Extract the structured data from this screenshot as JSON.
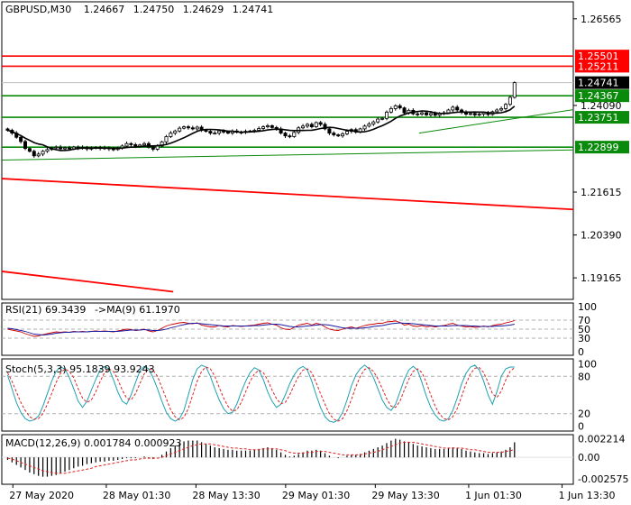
{
  "chart_data": {
    "type": "candlestick",
    "main": {
      "header": {
        "symbol": "GBPUSD,M30",
        "open": "1.24667",
        "high": "1.24750",
        "low": "1.24629",
        "close": "1.24741"
      },
      "y_ticks": [
        "1.26565",
        "1.24090",
        "1.21615",
        "1.20390",
        "1.19165"
      ],
      "y_tick_values": [
        1.26565,
        1.2409,
        1.21615,
        1.2039,
        1.19165
      ],
      "ylim": [
        1.1855,
        1.2705
      ],
      "red_levels": [
        {
          "value": 1.25501,
          "label": "1.25501"
        },
        {
          "value": 1.25211,
          "label": "1.25211"
        }
      ],
      "green_levels": [
        {
          "value": 1.24367,
          "label": "1.24367"
        },
        {
          "value": 1.23751,
          "label": "1.23751"
        },
        {
          "value": 1.22899,
          "label": "1.22899"
        }
      ],
      "current_price": {
        "value": 1.24741,
        "label": "1.24741"
      },
      "trendlines": [
        {
          "color": "#ff0000",
          "from": [
            0,
            1.22
          ],
          "to": [
            1.0,
            1.2112
          ]
        },
        {
          "color": "#ff0000",
          "from": [
            0,
            1.1935
          ],
          "to": [
            0.3,
            1.1877
          ]
        },
        {
          "color": "#0a8a0a",
          "from": [
            0,
            1.2253
          ],
          "to": [
            1.0,
            1.2282
          ]
        },
        {
          "color": "#0a8a0a",
          "from": [
            0.73,
            1.233
          ],
          "to": [
            1.0,
            1.2397
          ]
        }
      ],
      "close": [
        1.2338,
        1.233,
        1.2318,
        1.2306,
        1.2286,
        1.2278,
        1.2265,
        1.227,
        1.2278,
        1.2283,
        1.2288,
        1.229,
        1.2285,
        1.2288,
        1.2285,
        1.229,
        1.2287,
        1.2289,
        1.2285,
        1.2287,
        1.2289,
        1.2286,
        1.2288,
        1.2285,
        1.2283,
        1.2288,
        1.2293,
        1.23,
        1.2297,
        1.2292,
        1.2296,
        1.23,
        1.229,
        1.2284,
        1.2293,
        1.2305,
        1.232,
        1.233,
        1.2336,
        1.2344,
        1.2348,
        1.2345,
        1.2342,
        1.2347,
        1.2338,
        1.2335,
        1.233,
        1.233,
        1.2336,
        1.2333,
        1.233,
        1.2336,
        1.2333,
        1.2332,
        1.2335,
        1.2336,
        1.2338,
        1.2343,
        1.2348,
        1.2351,
        1.2346,
        1.2342,
        1.233,
        1.2322,
        1.232,
        1.2332,
        1.2345,
        1.235,
        1.2355,
        1.2348,
        1.236,
        1.2355,
        1.2342,
        1.233,
        1.2325,
        1.2322,
        1.2328,
        1.2335,
        1.234,
        1.2333,
        1.2342,
        1.235,
        1.2356,
        1.2362,
        1.237,
        1.2372,
        1.239,
        1.24,
        1.2408,
        1.2402,
        1.2388,
        1.2395,
        1.2385,
        1.2384,
        1.2388,
        1.2382,
        1.2386,
        1.2381,
        1.2386,
        1.2388,
        1.2396,
        1.2404,
        1.2396,
        1.239,
        1.2384,
        1.2386,
        1.2382,
        1.2384,
        1.2388,
        1.2383,
        1.2391,
        1.2396,
        1.24,
        1.2412,
        1.2432,
        1.2474
      ],
      "ma_note": "moving average line"
    },
    "rsi": {
      "label": "RSI(21) 69.3439",
      "ma_label": "->MA(9) 61.1970",
      "y_ticks": [
        "100",
        "70",
        "50",
        "30",
        "0"
      ],
      "y_tick_values": [
        100,
        70,
        50,
        30,
        0
      ],
      "levels": [
        70,
        50,
        30
      ],
      "values": [
        50,
        48,
        46,
        44,
        40,
        37,
        34,
        35,
        38,
        40,
        42,
        44,
        43,
        44,
        43,
        45,
        44,
        45,
        44,
        45,
        46,
        45,
        46,
        45,
        44,
        46,
        48,
        50,
        49,
        47,
        48,
        50,
        46,
        44,
        47,
        52,
        57,
        60,
        62,
        64,
        65,
        63,
        62,
        64,
        59,
        57,
        55,
        55,
        58,
        56,
        55,
        58,
        57,
        56,
        57,
        58,
        59,
        61,
        63,
        64,
        61,
        59,
        53,
        50,
        49,
        54,
        59,
        61,
        63,
        59,
        63,
        61,
        55,
        50,
        48,
        47,
        50,
        53,
        55,
        52,
        55,
        58,
        60,
        61,
        63,
        63,
        66,
        67,
        68,
        65,
        59,
        61,
        57,
        56,
        58,
        55,
        57,
        55,
        57,
        58,
        61,
        63,
        59,
        57,
        55,
        56,
        54,
        55,
        57,
        55,
        58,
        60,
        61,
        64,
        66,
        69
      ],
      "ma_values": [
        52,
        51,
        49,
        47,
        45,
        42,
        39,
        38,
        37,
        38,
        39,
        41,
        42,
        43,
        43,
        44,
        44,
        44,
        44,
        45,
        45,
        45,
        45,
        45,
        45,
        45,
        46,
        47,
        48,
        48,
        48,
        49,
        48,
        47,
        47,
        48,
        50,
        53,
        55,
        58,
        60,
        62,
        63,
        63,
        62,
        61,
        60,
        59,
        58,
        57,
        57,
        57,
        57,
        57,
        57,
        57,
        58,
        58,
        59,
        60,
        61,
        61,
        60,
        58,
        56,
        55,
        55,
        56,
        57,
        58,
        59,
        60,
        60,
        59,
        57,
        55,
        53,
        52,
        52,
        52,
        52,
        53,
        54,
        56,
        57,
        58,
        60,
        62,
        63,
        64,
        63,
        63,
        62,
        61,
        60,
        59,
        58,
        57,
        57,
        57,
        57,
        58,
        58,
        58,
        58,
        57,
        57,
        56,
        56,
        56,
        56,
        57,
        57,
        58,
        59,
        61
      ]
    },
    "stoch": {
      "label": "Stoch(5,3,3) 95.1839 93.9243",
      "y_ticks": [
        "100",
        "80",
        "20",
        "0"
      ],
      "y_tick_values": [
        100,
        80,
        20,
        0
      ],
      "levels": [
        80,
        20
      ],
      "main_values": [
        82,
        60,
        38,
        22,
        12,
        8,
        10,
        16,
        32,
        52,
        72,
        88,
        95,
        92,
        78,
        60,
        40,
        30,
        40,
        58,
        75,
        90,
        96,
        92,
        75,
        55,
        40,
        35,
        50,
        70,
        88,
        96,
        92,
        78,
        60,
        40,
        22,
        12,
        8,
        12,
        25,
        50,
        75,
        92,
        98,
        95,
        80,
        60,
        42,
        28,
        20,
        22,
        35,
        55,
        72,
        86,
        94,
        90,
        75,
        55,
        40,
        30,
        35,
        50,
        68,
        82,
        92,
        96,
        90,
        72,
        50,
        30,
        15,
        8,
        6,
        10,
        22,
        42,
        65,
        82,
        92,
        98,
        92,
        78,
        60,
        42,
        30,
        25,
        35,
        55,
        75,
        90,
        96,
        90,
        70,
        48,
        30,
        18,
        10,
        8,
        12,
        25,
        45,
        68,
        85,
        95,
        98,
        90,
        72,
        50,
        35,
        55,
        80,
        92,
        95,
        95
      ],
      "signal_values": [
        86,
        72,
        55,
        38,
        25,
        15,
        11,
        12,
        20,
        35,
        52,
        70,
        85,
        92,
        88,
        78,
        60,
        45,
        38,
        42,
        55,
        72,
        86,
        92,
        88,
        75,
        58,
        45,
        42,
        52,
        68,
        84,
        92,
        90,
        80,
        62,
        44,
        26,
        15,
        10,
        14,
        28,
        50,
        72,
        88,
        95,
        92,
        80,
        62,
        45,
        32,
        24,
        26,
        38,
        55,
        72,
        84,
        90,
        86,
        74,
        58,
        44,
        36,
        38,
        50,
        66,
        80,
        90,
        92,
        86,
        70,
        52,
        35,
        20,
        11,
        8,
        12,
        25,
        43,
        63,
        80,
        91,
        94,
        88,
        76,
        60,
        44,
        32,
        30,
        40,
        58,
        75,
        88,
        92,
        86,
        70,
        50,
        32,
        19,
        12,
        10,
        15,
        28,
        48,
        68,
        84,
        93,
        94,
        86,
        70,
        52,
        46,
        56,
        74,
        88,
        94
      ]
    },
    "macd": {
      "label": "MACD(12,26,9) 0.001784 0.000923",
      "y_ticks": [
        "0.002214",
        "0.00",
        "-0.002575"
      ],
      "y_tick_values": [
        0.002214,
        0.0,
        -0.002575
      ],
      "ylim": [
        -0.0032,
        0.0027
      ],
      "histogram": [
        -0.0003,
        -0.0006,
        -0.0009,
        -0.0012,
        -0.0015,
        -0.0018,
        -0.002,
        -0.0022,
        -0.0023,
        -0.0023,
        -0.0022,
        -0.0021,
        -0.0019,
        -0.0017,
        -0.0015,
        -0.0013,
        -0.0011,
        -0.001,
        -0.0008,
        -0.0007,
        -0.0006,
        -0.0005,
        -0.0005,
        -0.0004,
        -0.0004,
        -0.0003,
        -0.0002,
        -0.0001,
        -0.0001,
        -0.0001,
        0.0,
        0.0001,
        -0.0001,
        -0.0002,
        0.0,
        0.0003,
        0.0007,
        0.0011,
        0.0014,
        0.0017,
        0.0019,
        0.002,
        0.002,
        0.002,
        0.0018,
        0.0016,
        0.0014,
        0.0012,
        0.0011,
        0.001,
        0.0009,
        0.0009,
        0.0008,
        0.0008,
        0.0008,
        0.0008,
        0.0009,
        0.001,
        0.0011,
        0.0012,
        0.0011,
        0.0009,
        0.0006,
        0.0003,
        0.0001,
        0.0002,
        0.0004,
        0.0006,
        0.0008,
        0.0008,
        0.0009,
        0.0008,
        0.0005,
        0.0002,
        0.0,
        -0.0001,
        0.0,
        0.0002,
        0.0003,
        0.0003,
        0.0004,
        0.0006,
        0.0008,
        0.001,
        0.0012,
        0.0014,
        0.0017,
        0.002,
        0.0022,
        0.0021,
        0.0019,
        0.0018,
        0.0016,
        0.0014,
        0.0013,
        0.0012,
        0.0011,
        0.001,
        0.001,
        0.001,
        0.0011,
        0.0012,
        0.0011,
        0.001,
        0.0008,
        0.0007,
        0.0006,
        0.0005,
        0.0005,
        0.0004,
        0.0005,
        0.0006,
        0.0007,
        0.0009,
        0.0012,
        0.0018
      ],
      "signal": [
        -0.0001,
        -0.0002,
        -0.0004,
        -0.0006,
        -0.0008,
        -0.001,
        -0.0012,
        -0.0014,
        -0.0016,
        -0.0017,
        -0.0018,
        -0.0019,
        -0.0019,
        -0.0019,
        -0.0018,
        -0.0017,
        -0.0016,
        -0.0015,
        -0.0014,
        -0.0013,
        -0.0011,
        -0.001,
        -0.0009,
        -0.0008,
        -0.0007,
        -0.0006,
        -0.0005,
        -0.0004,
        -0.0003,
        -0.0003,
        -0.0002,
        -0.0001,
        -0.0001,
        -0.0001,
        -0.0001,
        0.0,
        0.0002,
        0.0004,
        0.0006,
        0.0008,
        0.001,
        0.0012,
        0.0014,
        0.0015,
        0.0016,
        0.0016,
        0.0016,
        0.0015,
        0.0014,
        0.0013,
        0.0012,
        0.0011,
        0.0011,
        0.001,
        0.001,
        0.0009,
        0.0009,
        0.0009,
        0.001,
        0.001,
        0.001,
        0.001,
        0.0009,
        0.0008,
        0.0006,
        0.0005,
        0.0005,
        0.0005,
        0.0006,
        0.0006,
        0.0007,
        0.0007,
        0.0007,
        0.0006,
        0.0005,
        0.0004,
        0.0003,
        0.0003,
        0.0003,
        0.0003,
        0.0003,
        0.0004,
        0.0005,
        0.0006,
        0.0007,
        0.0009,
        0.0011,
        0.0013,
        0.0015,
        0.0017,
        0.0018,
        0.0018,
        0.0018,
        0.0017,
        0.0016,
        0.0015,
        0.0014,
        0.0013,
        0.0012,
        0.0011,
        0.0011,
        0.0011,
        0.0011,
        0.0011,
        0.001,
        0.0009,
        0.0009,
        0.0008,
        0.0007,
        0.0006,
        0.0006,
        0.0006,
        0.0006,
        0.0007,
        0.0008,
        0.0009
      ]
    },
    "x_labels": [
      "27 May 2020",
      "28 May 01:30",
      "28 May 13:30",
      "29 May 01:30",
      "29 May 13:30",
      "1 Jun 01:30",
      "1 Jun 13:30"
    ],
    "x_label_index": [
      2,
      27,
      51,
      75,
      99,
      124,
      149
    ]
  }
}
